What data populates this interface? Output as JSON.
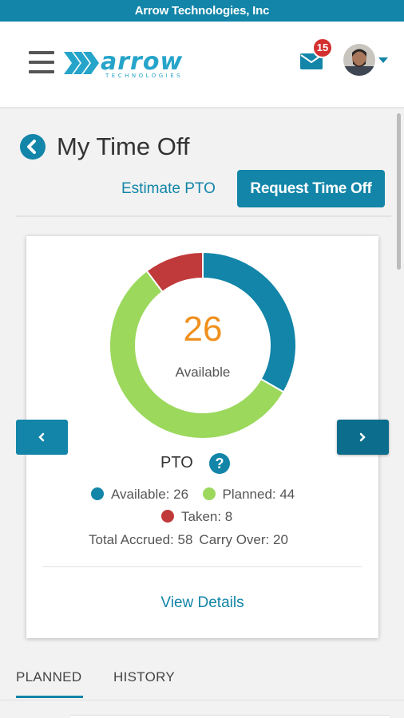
{
  "company": {
    "name": "Arrow Technologies, Inc"
  },
  "header": {
    "logo_text": "arrow",
    "logo_subtext": "TECHNOLOGIES",
    "notification_count": "15",
    "icons": {
      "menu": "hamburger-icon",
      "mail": "envelope-icon",
      "avatar": "user-avatar",
      "dropdown": "caret-down-icon"
    }
  },
  "page": {
    "title": "My Time Off",
    "estimate_label": "Estimate PTO",
    "request_label": "Request Time Off"
  },
  "summary": {
    "center_value": "26",
    "center_label": "Available",
    "title": "PTO",
    "help_glyph": "?",
    "legend": {
      "available": "Available: 26",
      "planned": "Planned: 44",
      "taken": "Taken: 8"
    },
    "totals": {
      "accrued": "Total Accrued: 58",
      "carry_over": "Carry Over: 20"
    },
    "view_details_label": "View Details",
    "colors": {
      "available": "#1285a8",
      "planned": "#9bd85c",
      "taken": "#c0393b",
      "center_value": "#f0901e"
    }
  },
  "chart_data": {
    "type": "pie",
    "categories": [
      "Available",
      "Planned",
      "Taken"
    ],
    "values": [
      26,
      44,
      8
    ]
  },
  "tabs": [
    {
      "label": "PLANNED",
      "active": true
    },
    {
      "label": "HISTORY",
      "active": false
    }
  ]
}
